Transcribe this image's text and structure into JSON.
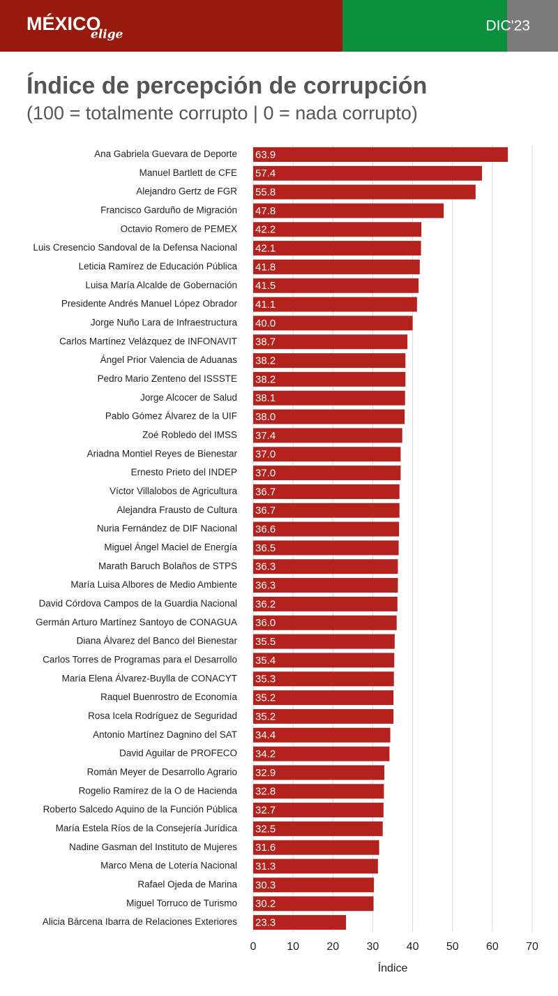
{
  "header": {
    "logo": "MÉXICO",
    "logo_sub": "elige",
    "date": "DIC'23"
  },
  "chart_data": {
    "type": "barh",
    "title": "Índice de percepción de corrupción",
    "subtitle": "(100 = totalmente corrupto | 0 = nada corrupto)",
    "x_label": "Índice",
    "color": "#b3221d",
    "grid": true,
    "xlim": [
      0,
      70
    ],
    "xticks": [
      0,
      10,
      20,
      30,
      40,
      50,
      60,
      70
    ],
    "categories": [
      "Ana Gabriela Guevara de Deporte",
      "Manuel Bartlett de CFE",
      "Alejandro Gertz de FGR",
      "Francisco Garduño de Migración",
      "Octavio Romero de PEMEX",
      "Luis Cresencio Sandoval de la Defensa Nacional",
      "Leticia Ramírez de Educación Pública",
      "Luisa María Alcalde de Gobernación",
      "Presidente Andrés Manuel López Obrador",
      "Jorge Nuño Lara de Infraestructura",
      "Carlos Martínez Velázquez de INFONAVIT",
      "Ángel Prior Valencia de Aduanas",
      "Pedro Mario Zenteno del ISSSTE",
      "Jorge Alcocer de Salud",
      "Pablo Gómez Álvarez de la UIF",
      "Zoé Robledo del IMSS",
      "Ariadna Montiel Reyes de Bienestar",
      "Ernesto Prieto del INDEP",
      "Víctor Villalobos de Agricultura",
      "Alejandra Frausto de Cultura",
      "Nuria Fernández de DIF Nacional",
      "Miguel Ángel Maciel de Energía",
      "Marath Baruch Bolaños de STPS",
      "María Luisa Albores de Medio Ambiente",
      "David Córdova Campos de la Guardia Nacional",
      "Germán Arturo Martínez Santoyo de CONAGUA",
      "Diana Álvarez del Banco del Bienestar",
      "Carlos Torres de Programas para el Desarrollo",
      "María Elena Álvarez-Buylla de CONACYT",
      "Raquel Buenrostro de Economía",
      "Rosa Icela Rodríguez de Seguridad",
      "Antonio Martínez Dagnino del SAT",
      "David Aguilar de PROFECO",
      "Román Meyer de Desarrollo Agrario",
      "Rogelio Ramírez de la O de Hacienda",
      "Roberto Salcedo Aquino de la Función Pública",
      "María Estela Ríos de la Consejería Jurídica",
      "Nadine Gasman del Instituto de Mujeres",
      "Marco Mena de Lotería Nacional",
      "Rafael Ojeda de Marina",
      "Miguel Torruco de Turismo",
      "Alicia Bárcena Ibarra de Relaciones Exteriores"
    ],
    "values": [
      63.9,
      57.4,
      55.8,
      47.8,
      42.2,
      42.1,
      41.8,
      41.5,
      41.1,
      40.0,
      38.7,
      38.2,
      38.2,
      38.1,
      38.0,
      37.4,
      37.0,
      37.0,
      36.7,
      36.7,
      36.6,
      36.5,
      36.3,
      36.3,
      36.2,
      36.0,
      35.5,
      35.4,
      35.3,
      35.2,
      35.2,
      34.4,
      34.2,
      32.9,
      32.8,
      32.7,
      32.5,
      31.6,
      31.3,
      30.3,
      30.2,
      23.3
    ],
    "value_labels": [
      "63.9",
      "57.4",
      "55.8",
      "47.8",
      "42.2",
      "42.1",
      "41.8",
      "41.5",
      "41.1",
      "40.0",
      "38.7",
      "38.2",
      "38.2",
      "38.1",
      "38.0",
      "37.4",
      "37.0",
      "37.0",
      "36.7",
      "36.7",
      "36.6",
      "36.5",
      "36.3",
      "36.3",
      "36.2",
      "36.0",
      "35.5",
      "35.4",
      "35.3",
      "35.2",
      "35.2",
      "34.4",
      "34.2",
      "32.9",
      "32.8",
      "32.7",
      "32.5",
      "31.6",
      "31.3",
      "30.3",
      "30.2",
      "23.3"
    ]
  }
}
